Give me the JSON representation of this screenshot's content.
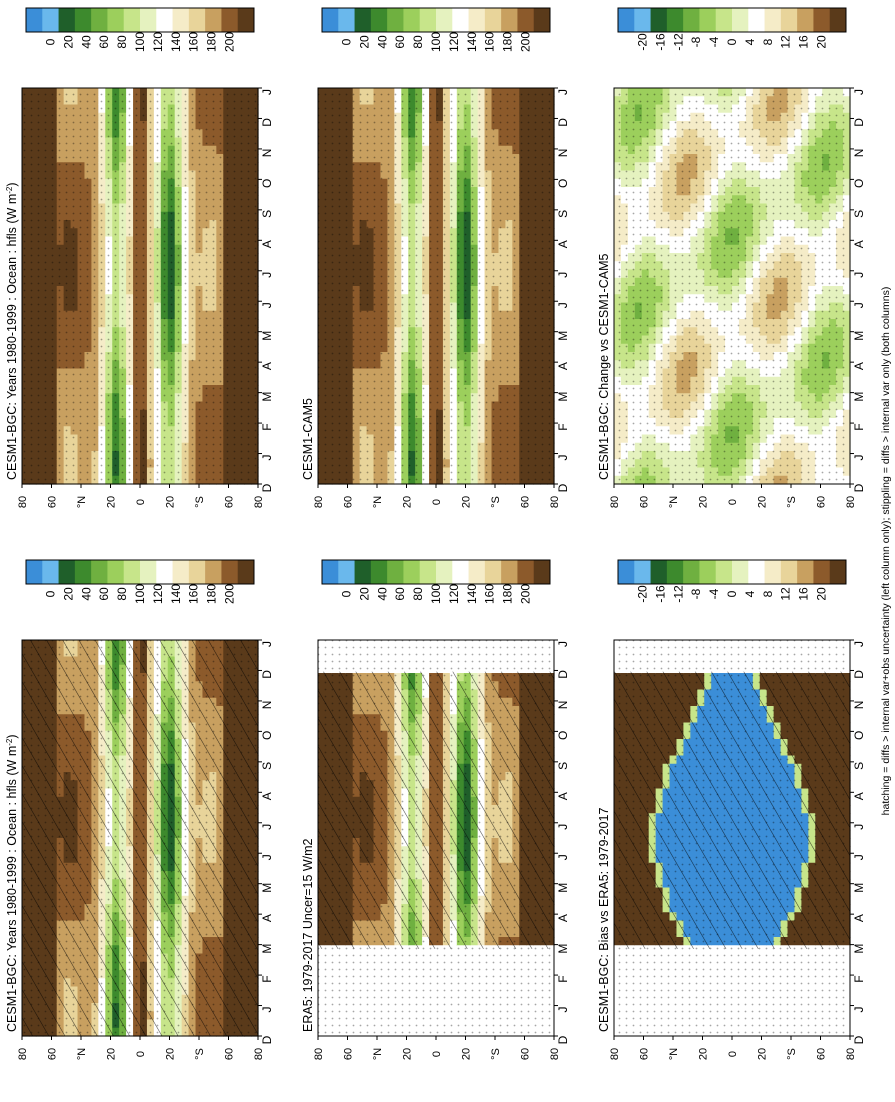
{
  "figure": {
    "footer_note": "hatching = diffs > internal var+obs uncertainty (left column only); stippling = diffs > internal var only (both columns)",
    "lat_unit_N": "°N",
    "lat_unit_S": "°S",
    "colors": {
      "brown_dark": "#5a3a1a",
      "brown": "#8c5a2b",
      "tan": "#c8a060",
      "sand": "#e8d49a",
      "cream": "#f5ecc8",
      "white": "#ffffff",
      "pale_green": "#e5f2bf",
      "light_green": "#c7e58a",
      "green": "#9ccf5c",
      "mid_green": "#6fb040",
      "dark_green": "#3d8a2d",
      "deepest_green": "#1f5f2a",
      "blue": "#3b8ed8",
      "light_blue": "#6ab8ec"
    }
  },
  "chart_data": [
    {
      "id": "p1",
      "type": "heatmap",
      "title": "CESM1-BGC: Years 1980-1999 : Ocean : hfls (W m",
      "title_sup": "-2",
      "title_end": ")",
      "x": [
        "D",
        "J",
        "F",
        "M",
        "A",
        "M",
        "J",
        "J",
        "A",
        "S",
        "O",
        "N",
        "D",
        "J"
      ],
      "y_ticks": [
        80,
        60,
        "N",
        20,
        0,
        20,
        "S",
        60,
        80
      ],
      "hatching": true,
      "stippling": true,
      "colorbar_ticks": [
        "0",
        "20",
        "40",
        "60",
        "80",
        "100",
        "120",
        "140",
        "160",
        "180",
        "200"
      ]
    },
    {
      "id": "p2",
      "type": "heatmap",
      "title": "CESM1-BGC: Years 1980-1999 : Ocean : hfls (W m",
      "title_sup": "-2",
      "title_end": ")",
      "x": [
        "D",
        "J",
        "F",
        "M",
        "A",
        "M",
        "J",
        "J",
        "A",
        "S",
        "O",
        "N",
        "D",
        "J"
      ],
      "y_ticks": [
        80,
        60,
        "N",
        20,
        0,
        20,
        "S",
        60,
        80
      ],
      "hatching": false,
      "stippling": true,
      "colorbar_ticks": [
        "0",
        "20",
        "40",
        "60",
        "80",
        "100",
        "120",
        "140",
        "160",
        "180",
        "200"
      ]
    },
    {
      "id": "p3",
      "type": "heatmap",
      "title": "ERA5: 1979-2017 Uncer=15 W/m2",
      "x": [
        "D",
        "J",
        "F",
        "M",
        "A",
        "M",
        "J",
        "J",
        "A",
        "S",
        "O",
        "N",
        "D",
        "J"
      ],
      "y_ticks": [
        80,
        60,
        "N",
        20,
        0,
        20,
        "S",
        60,
        80
      ],
      "hatching": true,
      "stippling": true,
      "colorbar_ticks": [
        "0",
        "20",
        "40",
        "60",
        "80",
        "100",
        "120",
        "140",
        "160",
        "180",
        "200"
      ]
    },
    {
      "id": "p4",
      "type": "heatmap",
      "title": "CESM1-CAM5",
      "x": [
        "D",
        "J",
        "F",
        "M",
        "A",
        "M",
        "J",
        "J",
        "A",
        "S",
        "O",
        "N",
        "D",
        "J"
      ],
      "y_ticks": [
        80,
        60,
        "N",
        20,
        0,
        20,
        "S",
        60,
        80
      ],
      "hatching": false,
      "stippling": true,
      "colorbar_ticks": [
        "0",
        "20",
        "40",
        "60",
        "80",
        "100",
        "120",
        "140",
        "160",
        "180",
        "200"
      ]
    },
    {
      "id": "p5",
      "type": "heatmap",
      "title": "CESM1-BGC: Bias vs ERA5: 1979-2017",
      "x": [
        "D",
        "J",
        "F",
        "M",
        "A",
        "M",
        "J",
        "J",
        "A",
        "S",
        "O",
        "N",
        "D",
        "J"
      ],
      "y_ticks": [
        80,
        60,
        "N",
        20,
        0,
        20,
        "S",
        60,
        80
      ],
      "hatching": true,
      "stippling": true,
      "colorbar_ticks": [
        "-20",
        "-16",
        "-12",
        "-8",
        "-4",
        "0",
        "4",
        "8",
        "12",
        "16",
        "20"
      ]
    },
    {
      "id": "p6",
      "type": "heatmap",
      "title": "CESM1-BGC: Change vs CESM1-CAM5",
      "x": [
        "D",
        "J",
        "F",
        "M",
        "A",
        "M",
        "J",
        "J",
        "A",
        "S",
        "O",
        "N",
        "D",
        "J"
      ],
      "y_ticks": [
        80,
        60,
        "N",
        20,
        0,
        20,
        "S",
        60,
        80
      ],
      "hatching": false,
      "stippling": true,
      "colorbar_ticks": [
        "-20",
        "-16",
        "-12",
        "-8",
        "-4",
        "0",
        "4",
        "8",
        "12",
        "16",
        "20"
      ]
    }
  ]
}
